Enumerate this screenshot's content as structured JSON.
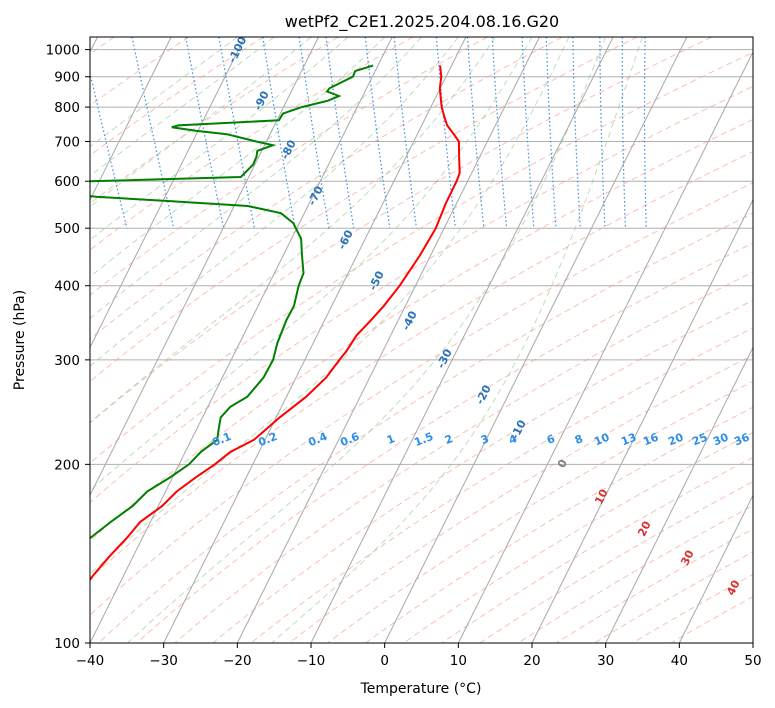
{
  "chart_data": {
    "type": "skew-t log-p sounding",
    "title": "wetPf2_C2E1.2025.204.08.16.G20",
    "xlabel": "Temperature (°C)",
    "ylabel": "Pressure (hPa)",
    "xlim": [
      -40,
      50
    ],
    "ylim": [
      1050,
      100
    ],
    "y_scale": "log",
    "grid": true,
    "x_ticks": [
      "−40",
      "−30",
      "−20",
      "−10",
      "0",
      "10",
      "20",
      "30",
      "40",
      "50"
    ],
    "y_ticks": [
      "100",
      "200",
      "300",
      "400",
      "500",
      "600",
      "700",
      "800",
      "900",
      "1000"
    ],
    "temperature_color": "#ff0000",
    "dewpoint_color": "#008000",
    "temperature_profile": [
      {
        "p": 940,
        "t": 5.6
      },
      {
        "p": 900,
        "t": 5.0
      },
      {
        "p": 860,
        "t": 4.0
      },
      {
        "p": 830,
        "t": 3.5
      },
      {
        "p": 800,
        "t": 3.0
      },
      {
        "p": 770,
        "t": 2.7
      },
      {
        "p": 745,
        "t": 2.5
      },
      {
        "p": 720,
        "t": 2.8
      },
      {
        "p": 700,
        "t": 3.0
      },
      {
        "p": 660,
        "t": 2.0
      },
      {
        "p": 620,
        "t": 1.0
      },
      {
        "p": 600,
        "t": 0.0
      },
      {
        "p": 550,
        "t": -3.0
      },
      {
        "p": 500,
        "t": -6.0
      },
      {
        "p": 450,
        "t": -10.0
      },
      {
        "p": 400,
        "t": -14.8
      },
      {
        "p": 370,
        "t": -18.3
      },
      {
        "p": 350,
        "t": -21.0
      },
      {
        "p": 330,
        "t": -24.0
      },
      {
        "p": 310,
        "t": -26.5
      },
      {
        "p": 300,
        "t": -28.0
      },
      {
        "p": 280,
        "t": -31.0
      },
      {
        "p": 260,
        "t": -35.0
      },
      {
        "p": 240,
        "t": -40.0
      },
      {
        "p": 220,
        "t": -45.0
      },
      {
        "p": 210,
        "t": -49.0
      },
      {
        "p": 200,
        "t": -52.0
      },
      {
        "p": 190,
        "t": -55.5
      },
      {
        "p": 180,
        "t": -59.0
      },
      {
        "p": 170,
        "t": -62.0
      },
      {
        "p": 160,
        "t": -66.0
      },
      {
        "p": 150,
        "t": -69.0
      },
      {
        "p": 140,
        "t": -72.5
      },
      {
        "p": 130,
        "t": -76.0
      },
      {
        "p": 120,
        "t": -79.5
      },
      {
        "p": 110,
        "t": -83.0
      },
      {
        "p": 100,
        "t": -86.5
      }
    ],
    "dewpoint_profile": [
      {
        "p": 940,
        "t": -3.5
      },
      {
        "p": 920,
        "t": -6.3
      },
      {
        "p": 900,
        "t": -7.0
      },
      {
        "p": 880,
        "t": -9.0
      },
      {
        "p": 860,
        "t": -11.0
      },
      {
        "p": 850,
        "t": -11.5
      },
      {
        "p": 835,
        "t": -10.2
      },
      {
        "p": 820,
        "t": -12.0
      },
      {
        "p": 800,
        "t": -16.0
      },
      {
        "p": 780,
        "t": -19.0
      },
      {
        "p": 760,
        "t": -20.0
      },
      {
        "p": 745,
        "t": -34.0
      },
      {
        "p": 740,
        "t": -35.0
      },
      {
        "p": 730,
        "t": -32.0
      },
      {
        "p": 720,
        "t": -28.0
      },
      {
        "p": 700,
        "t": -24.5
      },
      {
        "p": 690,
        "t": -22.5
      },
      {
        "p": 675,
        "t": -25.0
      },
      {
        "p": 660,
        "t": -25.5
      },
      {
        "p": 640,
        "t": -26.5
      },
      {
        "p": 610,
        "t": -29.0
      },
      {
        "p": 595,
        "t": -60.0
      },
      {
        "p": 590,
        "t": -70.0
      },
      {
        "p": 580,
        "t": -60.0
      },
      {
        "p": 565,
        "t": -50.0
      },
      {
        "p": 555,
        "t": -40.0
      },
      {
        "p": 545,
        "t": -30.0
      },
      {
        "p": 530,
        "t": -26.0
      },
      {
        "p": 510,
        "t": -25.0
      },
      {
        "p": 500,
        "t": -25.0
      },
      {
        "p": 480,
        "t": -25.0
      },
      {
        "p": 450,
        "t": -26.0
      },
      {
        "p": 420,
        "t": -27.0
      },
      {
        "p": 400,
        "t": -28.5
      },
      {
        "p": 370,
        "t": -30.5
      },
      {
        "p": 350,
        "t": -32.5
      },
      {
        "p": 320,
        "t": -35.3
      },
      {
        "p": 300,
        "t": -37.0
      },
      {
        "p": 280,
        "t": -39.5
      },
      {
        "p": 260,
        "t": -43.0
      },
      {
        "p": 250,
        "t": -46.0
      },
      {
        "p": 240,
        "t": -48.0
      },
      {
        "p": 230,
        "t": -49.0
      },
      {
        "p": 220,
        "t": -50.0
      },
      {
        "p": 210,
        "t": -53.0
      },
      {
        "p": 200,
        "t": -55.5
      },
      {
        "p": 190,
        "t": -59.0
      },
      {
        "p": 180,
        "t": -63.0
      },
      {
        "p": 170,
        "t": -66.0
      },
      {
        "p": 160,
        "t": -70.0
      },
      {
        "p": 150,
        "t": -74.0
      },
      {
        "p": 140,
        "t": -78.0
      },
      {
        "p": 130,
        "t": -82.0
      },
      {
        "p": 120,
        "t": -85.0
      },
      {
        "p": 110,
        "t": -87.5
      },
      {
        "p": 100,
        "t": -89.5
      }
    ],
    "isotherm_labels": [
      "-100",
      "-90",
      "-80",
      "-70",
      "-60",
      "-50",
      "-40",
      "-30",
      "-20",
      "-10",
      "0",
      "10",
      "20",
      "30",
      "40"
    ],
    "mixing_ratio_labels": [
      "0.1",
      "0.2",
      "0.4",
      "0.6",
      "1",
      "1.5",
      "2",
      "3",
      "4",
      "6",
      "8",
      "10",
      "13",
      "16",
      "20",
      "25",
      "30",
      "36"
    ],
    "mixing_ratio_values": [
      0.1,
      0.2,
      0.4,
      0.6,
      1,
      1.5,
      2,
      3,
      4,
      6,
      8,
      10,
      13,
      16,
      20,
      25,
      30,
      36
    ]
  }
}
